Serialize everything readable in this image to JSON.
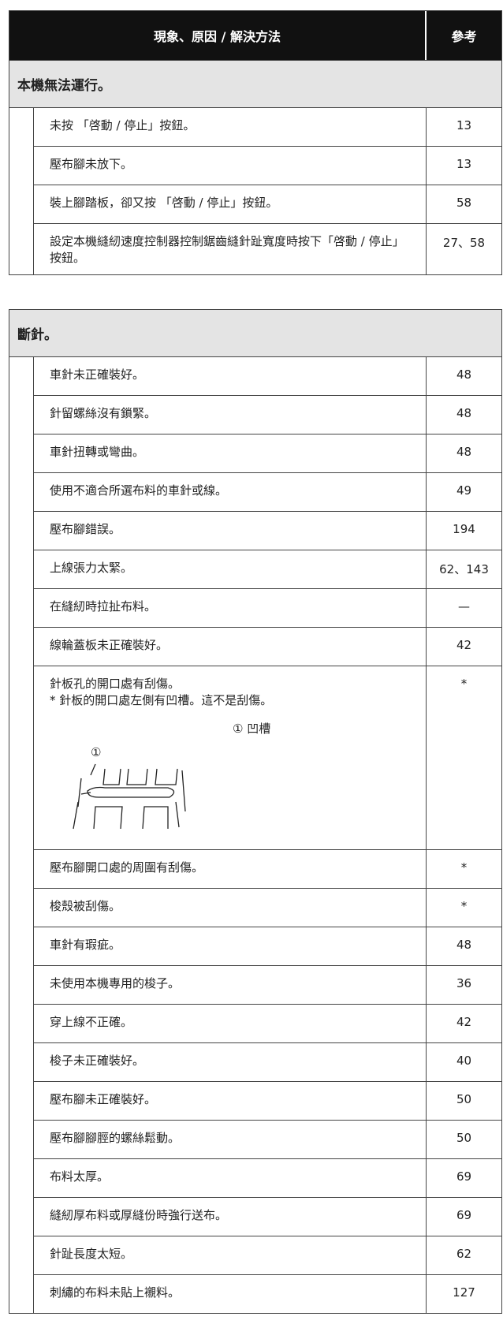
{
  "header": {
    "description": "現象、原因 / 解決方法",
    "reference": "參考"
  },
  "sections": [
    {
      "title": "本機無法運行。",
      "rows": [
        {
          "text": "未按 「啓動 / 停止」按鈕。",
          "ref": "13"
        },
        {
          "text": "壓布腳未放下。",
          "ref": "13"
        },
        {
          "text": "裝上腳踏板，卻又按 「啓動 / 停止」按鈕。",
          "ref": "58"
        },
        {
          "text": "設定本機縫紉速度控制器控制鋸齒縫針趾寬度時按下「啓動 / 停止」按鈕。",
          "ref": "27、58"
        }
      ]
    },
    {
      "title": "斷針。",
      "rows": [
        {
          "text": "車針未正確裝好。",
          "ref": "48"
        },
        {
          "text": "針留螺絲沒有鎖緊。",
          "ref": "48"
        },
        {
          "text": "車針扭轉或彎曲。",
          "ref": "48"
        },
        {
          "text": "使用不適合所選布料的車針或線。",
          "ref": "49"
        },
        {
          "text": "壓布腳錯誤。",
          "ref": "194"
        },
        {
          "text": "上線張力太緊。",
          "ref": "62、143"
        },
        {
          "text": "在縫紉時拉扯布料。",
          "ref": "—"
        },
        {
          "text": "線輪蓋板未正確裝好。",
          "ref": "42"
        },
        {
          "text": "針板孔的開口處有刮傷。",
          "note": "* 針板的開口處左側有凹槽。這不是刮傷。",
          "figure": {
            "callout": "①",
            "legend": "① 凹槽"
          },
          "ref": "*"
        },
        {
          "text": "壓布腳開口處的周圍有刮傷。",
          "ref": "*"
        },
        {
          "text": "梭殼被刮傷。",
          "ref": "*"
        },
        {
          "text": "車針有瑕疵。",
          "ref": "48"
        },
        {
          "text": "未使用本機專用的梭子。",
          "ref": "36"
        },
        {
          "text": "穿上線不正確。",
          "ref": "42"
        },
        {
          "text": "梭子未正確裝好。",
          "ref": "40"
        },
        {
          "text": "壓布腳未正確裝好。",
          "ref": "50"
        },
        {
          "text": "壓布腳腳脛的螺絲鬆動。",
          "ref": "50"
        },
        {
          "text": "布料太厚。",
          "ref": "69"
        },
        {
          "text": "縫紉厚布料或厚縫份時強行送布。",
          "ref": "69"
        },
        {
          "text": "針趾長度太短。",
          "ref": "62"
        },
        {
          "text": "刺繡的布料未貼上襯料。",
          "ref": "127"
        }
      ]
    }
  ]
}
